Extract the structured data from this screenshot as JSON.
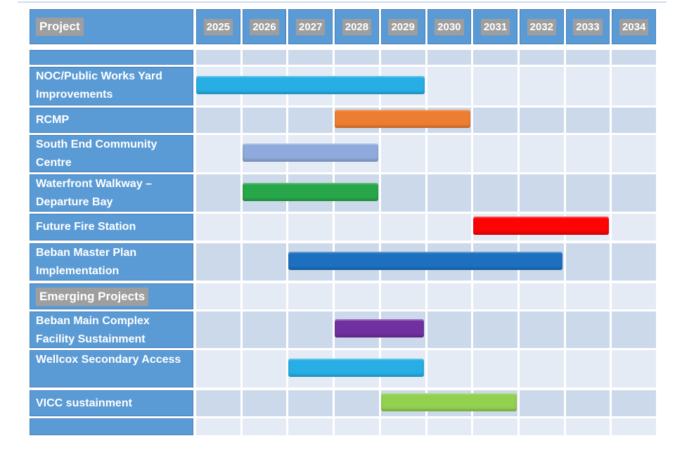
{
  "header": {
    "project": "Project",
    "years": [
      "2025",
      "2026",
      "2027",
      "2028",
      "2029",
      "2030",
      "2031",
      "2032",
      "2033",
      "2034"
    ]
  },
  "colors": {
    "table_blue": "#5b9bd5",
    "stripe_dark": "#ccd9ea",
    "stripe_light": "#e4ebf5",
    "highlight_gray": "#9e9e9e",
    "gridline_white": "#ffffff",
    "bar_cyan": "#27aee4",
    "bar_orange": "#ed7d31",
    "bar_periwinkle": "#8faadc",
    "bar_green": "#27a64a",
    "bar_red": "#fb0404",
    "bar_dark_blue": "#1d70bf",
    "bar_purple": "#7030a0",
    "bar_light_green": "#92d050"
  },
  "rows": [
    {
      "type": "spacer",
      "label": ""
    },
    {
      "type": "project",
      "label": "NOC/Public Works Yard Improvements",
      "bar": {
        "start_year": 2025,
        "end_year": 2029,
        "color": "#27aee4"
      }
    },
    {
      "type": "project",
      "label": "RCMP",
      "bar": {
        "start_year": 2028,
        "end_year": 2030,
        "color": "#ed7d31"
      }
    },
    {
      "type": "project",
      "label": "South End Community Centre",
      "bar": {
        "start_year": 2026,
        "end_year": 2028,
        "color": "#8faadc"
      }
    },
    {
      "type": "project",
      "label": "Waterfront Walkway – Departure Bay",
      "bar": {
        "start_year": 2026,
        "end_year": 2028,
        "color": "#27a64a"
      }
    },
    {
      "type": "project",
      "label": "Future Fire Station",
      "bar": {
        "start_year": 2031,
        "end_year": 2033,
        "color": "#fb0404"
      }
    },
    {
      "type": "project",
      "label": "Beban Master Plan Implementation",
      "bar": {
        "start_year": 2027,
        "end_year": 2032,
        "color": "#1d70bf"
      }
    },
    {
      "type": "section",
      "label": "Emerging Projects"
    },
    {
      "type": "project",
      "label": "Beban Main Complex Facility Sustainment",
      "bar": {
        "start_year": 2028,
        "end_year": 2029,
        "color": "#7030a0"
      }
    },
    {
      "type": "project",
      "label": "Wellcox Secondary Access",
      "bar": {
        "start_year": 2027,
        "end_year": 2029,
        "color": "#27aee4"
      }
    },
    {
      "type": "project",
      "label": "VICC sustainment",
      "bar": {
        "start_year": 2029,
        "end_year": 2031,
        "color": "#92d050"
      }
    },
    {
      "type": "spacer",
      "label": ""
    }
  ],
  "chart_data": {
    "type": "bar",
    "subtype": "gantt",
    "title": "",
    "xlabel": "",
    "ylabel": "Project",
    "x_categories": [
      "2025",
      "2026",
      "2027",
      "2028",
      "2029",
      "2030",
      "2031",
      "2032",
      "2033",
      "2034"
    ],
    "xlim": [
      2025,
      2035
    ],
    "grid": true,
    "legend": false,
    "tasks": [
      {
        "name": "NOC/Public Works Yard Improvements",
        "start_year": 2025,
        "end_year": 2029,
        "color": "#27aee4"
      },
      {
        "name": "RCMP",
        "start_year": 2028,
        "end_year": 2030,
        "color": "#ed7d31"
      },
      {
        "name": "South End Community Centre",
        "start_year": 2026,
        "end_year": 2028,
        "color": "#8faadc"
      },
      {
        "name": "Waterfront Walkway – Departure Bay",
        "start_year": 2026,
        "end_year": 2028,
        "color": "#27a64a"
      },
      {
        "name": "Future Fire Station",
        "start_year": 2031,
        "end_year": 2033,
        "color": "#fb0404"
      },
      {
        "name": "Beban Master Plan Implementation",
        "start_year": 2027,
        "end_year": 2032,
        "color": "#1d70bf"
      },
      {
        "name": "Emerging Projects",
        "section_header": true
      },
      {
        "name": "Beban Main Complex Facility Sustainment",
        "start_year": 2028,
        "end_year": 2029,
        "color": "#7030a0"
      },
      {
        "name": "Wellcox Secondary Access",
        "start_year": 2027,
        "end_year": 2029,
        "color": "#27aee4"
      },
      {
        "name": "VICC sustainment",
        "start_year": 2029,
        "end_year": 2031,
        "color": "#92d050"
      }
    ]
  }
}
